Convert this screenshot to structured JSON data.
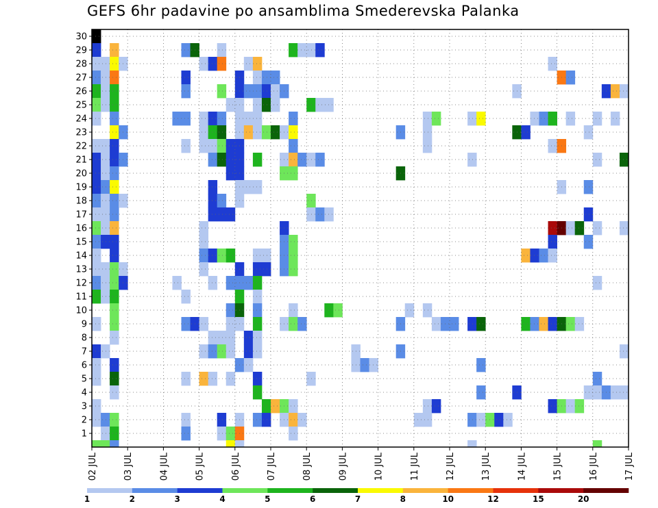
{
  "chart_data": {
    "type": "heatmap",
    "title": "GEFS 6hr padavine po ansamblima Smederevska Palanka",
    "xlabel": "",
    "ylabel": "",
    "x_tick_labels": [
      "02 JUL",
      "03 JUL",
      "04 JUL",
      "05 JUL",
      "06 JUL",
      "07 JUL",
      "08 JUL",
      "09 JUL",
      "10 JUL",
      "11 JUL",
      "12 JUL",
      "13 JUL",
      "14 JUL",
      "15 JUL",
      "16 JUL",
      "17 JUL"
    ],
    "y_tick_labels": [
      "1",
      "2",
      "3",
      "4",
      "5",
      "6",
      "7",
      "8",
      "9",
      "10",
      "11",
      "12",
      "13",
      "14",
      "15",
      "16",
      "17",
      "18",
      "19",
      "20",
      "21",
      "22",
      "23",
      "24",
      "25",
      "26",
      "27",
      "28",
      "29",
      "30"
    ],
    "x_range": [
      0,
      60
    ],
    "y_range": [
      0,
      30
    ],
    "grid": true,
    "colorbar": {
      "labels": [
        "1",
        "2",
        "3",
        "4",
        "5",
        "6",
        "7",
        "8",
        "10",
        "12",
        "15",
        "20"
      ],
      "colors": [
        "#b4c8f0",
        "#5a8ce6",
        "#1e3cd2",
        "#6ee65a",
        "#1eb41e",
        "#0a640a",
        "#fafa00",
        "#fab43c",
        "#fa7814",
        "#e6320a",
        "#aa0a0a",
        "#640000"
      ]
    },
    "units_note": "cells: [step, member, class]; step = 6h forecast step from 02 JUL 00Z, member = ensemble row (0 = bottom row below 1, 30 = top), class = 1..12 precipitation class (1=1-2, 2=2-3, 3=3-4, 4=4-5, 5=5-6, 6=6-7, 7=7-8, 8=8-10, 9=10-12, 10=12-15, 11=15-20, 12=20+)",
    "cells": [
      [
        0,
        30,
        0
      ],
      [
        0,
        29,
        3
      ],
      [
        2,
        29,
        8
      ],
      [
        10,
        29,
        2
      ],
      [
        11,
        29,
        6
      ],
      [
        14,
        29,
        1
      ],
      [
        22,
        29,
        5
      ],
      [
        23,
        29,
        1
      ],
      [
        24,
        29,
        1
      ],
      [
        25,
        29,
        3
      ],
      [
        0,
        28,
        1
      ],
      [
        1,
        28,
        1
      ],
      [
        2,
        28,
        7
      ],
      [
        3,
        28,
        1
      ],
      [
        12,
        28,
        1
      ],
      [
        13,
        28,
        3
      ],
      [
        14,
        28,
        9
      ],
      [
        17,
        28,
        1
      ],
      [
        18,
        28,
        8
      ],
      [
        51,
        28,
        1
      ],
      [
        0,
        27,
        2
      ],
      [
        1,
        27,
        1
      ],
      [
        2,
        27,
        9
      ],
      [
        10,
        27,
        3
      ],
      [
        16,
        27,
        3
      ],
      [
        18,
        27,
        1
      ],
      [
        19,
        27,
        2
      ],
      [
        20,
        27,
        2
      ],
      [
        52,
        27,
        9
      ],
      [
        53,
        27,
        2
      ],
      [
        0,
        26,
        5
      ],
      [
        1,
        26,
        1
      ],
      [
        2,
        26,
        5
      ],
      [
        10,
        26,
        2
      ],
      [
        14,
        26,
        4
      ],
      [
        16,
        26,
        3
      ],
      [
        17,
        26,
        2
      ],
      [
        18,
        26,
        2
      ],
      [
        19,
        26,
        3
      ],
      [
        20,
        26,
        1
      ],
      [
        21,
        26,
        2
      ],
      [
        47,
        26,
        1
      ],
      [
        57,
        26,
        3
      ],
      [
        58,
        26,
        8
      ],
      [
        59,
        26,
        1
      ],
      [
        0,
        25,
        4
      ],
      [
        1,
        25,
        1
      ],
      [
        2,
        25,
        5
      ],
      [
        15,
        25,
        1
      ],
      [
        16,
        25,
        1
      ],
      [
        18,
        25,
        1
      ],
      [
        19,
        25,
        6
      ],
      [
        20,
        25,
        1
      ],
      [
        24,
        25,
        5
      ],
      [
        25,
        25,
        1
      ],
      [
        26,
        25,
        1
      ],
      [
        0,
        24,
        1
      ],
      [
        2,
        24,
        2
      ],
      [
        9,
        24,
        2
      ],
      [
        10,
        24,
        2
      ],
      [
        12,
        24,
        1
      ],
      [
        13,
        24,
        3
      ],
      [
        14,
        24,
        2
      ],
      [
        16,
        24,
        1
      ],
      [
        17,
        24,
        1
      ],
      [
        18,
        24,
        1
      ],
      [
        22,
        24,
        2
      ],
      [
        37,
        24,
        1
      ],
      [
        38,
        24,
        4
      ],
      [
        42,
        24,
        1
      ],
      [
        43,
        24,
        7
      ],
      [
        49,
        24,
        1
      ],
      [
        50,
        24,
        2
      ],
      [
        51,
        24,
        5
      ],
      [
        53,
        24,
        1
      ],
      [
        56,
        24,
        1
      ],
      [
        58,
        24,
        1
      ],
      [
        2,
        23,
        7
      ],
      [
        3,
        23,
        2
      ],
      [
        12,
        23,
        1
      ],
      [
        13,
        23,
        5
      ],
      [
        14,
        23,
        6
      ],
      [
        16,
        23,
        1
      ],
      [
        17,
        23,
        8
      ],
      [
        18,
        23,
        1
      ],
      [
        19,
        23,
        4
      ],
      [
        20,
        23,
        6
      ],
      [
        21,
        23,
        1
      ],
      [
        22,
        23,
        7
      ],
      [
        34,
        23,
        2
      ],
      [
        37,
        23,
        1
      ],
      [
        47,
        23,
        6
      ],
      [
        48,
        23,
        3
      ],
      [
        55,
        23,
        1
      ],
      [
        0,
        22,
        1
      ],
      [
        1,
        22,
        1
      ],
      [
        2,
        22,
        3
      ],
      [
        10,
        22,
        1
      ],
      [
        12,
        22,
        1
      ],
      [
        13,
        22,
        1
      ],
      [
        14,
        22,
        4
      ],
      [
        15,
        22,
        3
      ],
      [
        16,
        22,
        3
      ],
      [
        22,
        22,
        2
      ],
      [
        37,
        22,
        1
      ],
      [
        51,
        22,
        1
      ],
      [
        52,
        22,
        9
      ],
      [
        0,
        21,
        3
      ],
      [
        1,
        21,
        1
      ],
      [
        2,
        21,
        3
      ],
      [
        3,
        21,
        2
      ],
      [
        13,
        21,
        2
      ],
      [
        14,
        21,
        6
      ],
      [
        15,
        21,
        3
      ],
      [
        16,
        21,
        3
      ],
      [
        18,
        21,
        5
      ],
      [
        21,
        21,
        1
      ],
      [
        22,
        21,
        8
      ],
      [
        23,
        21,
        2
      ],
      [
        24,
        21,
        1
      ],
      [
        25,
        21,
        2
      ],
      [
        42,
        21,
        1
      ],
      [
        56,
        21,
        1
      ],
      [
        59,
        21,
        6
      ],
      [
        0,
        20,
        3
      ],
      [
        1,
        20,
        1
      ],
      [
        2,
        20,
        2
      ],
      [
        15,
        20,
        3
      ],
      [
        16,
        20,
        3
      ],
      [
        21,
        20,
        4
      ],
      [
        22,
        20,
        4
      ],
      [
        34,
        20,
        6
      ],
      [
        0,
        19,
        3
      ],
      [
        1,
        19,
        2
      ],
      [
        2,
        19,
        7
      ],
      [
        13,
        19,
        3
      ],
      [
        16,
        19,
        1
      ],
      [
        17,
        19,
        1
      ],
      [
        18,
        19,
        1
      ],
      [
        52,
        19,
        1
      ],
      [
        55,
        19,
        2
      ],
      [
        0,
        18,
        2
      ],
      [
        1,
        18,
        1
      ],
      [
        2,
        18,
        2
      ],
      [
        3,
        18,
        1
      ],
      [
        13,
        18,
        3
      ],
      [
        14,
        18,
        2
      ],
      [
        16,
        18,
        1
      ],
      [
        24,
        18,
        4
      ],
      [
        0,
        17,
        1
      ],
      [
        1,
        17,
        1
      ],
      [
        2,
        17,
        2
      ],
      [
        13,
        17,
        3
      ],
      [
        14,
        17,
        3
      ],
      [
        15,
        17,
        3
      ],
      [
        24,
        17,
        1
      ],
      [
        25,
        17,
        2
      ],
      [
        26,
        17,
        1
      ],
      [
        55,
        17,
        3
      ],
      [
        0,
        16,
        4
      ],
      [
        1,
        16,
        1
      ],
      [
        2,
        16,
        8
      ],
      [
        12,
        16,
        1
      ],
      [
        21,
        16,
        3
      ],
      [
        51,
        16,
        11
      ],
      [
        52,
        16,
        12
      ],
      [
        53,
        16,
        1
      ],
      [
        54,
        16,
        6
      ],
      [
        56,
        16,
        1
      ],
      [
        59,
        16,
        1
      ],
      [
        0,
        15,
        2
      ],
      [
        1,
        15,
        3
      ],
      [
        2,
        15,
        3
      ],
      [
        12,
        15,
        1
      ],
      [
        21,
        15,
        2
      ],
      [
        22,
        15,
        4
      ],
      [
        51,
        15,
        3
      ],
      [
        55,
        15,
        2
      ],
      [
        0,
        14,
        1
      ],
      [
        2,
        14,
        3
      ],
      [
        12,
        14,
        2
      ],
      [
        13,
        14,
        3
      ],
      [
        14,
        14,
        4
      ],
      [
        15,
        14,
        5
      ],
      [
        18,
        14,
        1
      ],
      [
        19,
        14,
        1
      ],
      [
        21,
        14,
        2
      ],
      [
        22,
        14,
        4
      ],
      [
        48,
        14,
        8
      ],
      [
        49,
        14,
        3
      ],
      [
        50,
        14,
        2
      ],
      [
        51,
        14,
        1
      ],
      [
        0,
        13,
        1
      ],
      [
        1,
        13,
        1
      ],
      [
        2,
        13,
        4
      ],
      [
        3,
        13,
        1
      ],
      [
        12,
        13,
        1
      ],
      [
        16,
        13,
        3
      ],
      [
        18,
        13,
        3
      ],
      [
        19,
        13,
        3
      ],
      [
        21,
        13,
        2
      ],
      [
        22,
        13,
        4
      ],
      [
        0,
        12,
        2
      ],
      [
        1,
        12,
        1
      ],
      [
        2,
        12,
        4
      ],
      [
        3,
        12,
        3
      ],
      [
        9,
        12,
        1
      ],
      [
        13,
        12,
        1
      ],
      [
        15,
        12,
        2
      ],
      [
        16,
        12,
        2
      ],
      [
        17,
        12,
        2
      ],
      [
        18,
        12,
        5
      ],
      [
        56,
        12,
        1
      ],
      [
        0,
        11,
        5
      ],
      [
        1,
        11,
        1
      ],
      [
        2,
        11,
        5
      ],
      [
        10,
        11,
        1
      ],
      [
        16,
        11,
        5
      ],
      [
        18,
        11,
        1
      ],
      [
        2,
        10,
        4
      ],
      [
        15,
        10,
        2
      ],
      [
        16,
        10,
        6
      ],
      [
        18,
        10,
        2
      ],
      [
        22,
        10,
        1
      ],
      [
        26,
        10,
        5
      ],
      [
        27,
        10,
        4
      ],
      [
        35,
        10,
        1
      ],
      [
        37,
        10,
        1
      ],
      [
        0,
        9,
        1
      ],
      [
        2,
        9,
        4
      ],
      [
        10,
        9,
        2
      ],
      [
        11,
        9,
        3
      ],
      [
        12,
        9,
        1
      ],
      [
        15,
        9,
        1
      ],
      [
        16,
        9,
        1
      ],
      [
        18,
        9,
        5
      ],
      [
        21,
        9,
        1
      ],
      [
        22,
        9,
        4
      ],
      [
        23,
        9,
        2
      ],
      [
        34,
        9,
        2
      ],
      [
        38,
        9,
        1
      ],
      [
        39,
        9,
        2
      ],
      [
        40,
        9,
        2
      ],
      [
        42,
        9,
        3
      ],
      [
        43,
        9,
        6
      ],
      [
        48,
        9,
        5
      ],
      [
        49,
        9,
        2
      ],
      [
        50,
        9,
        8
      ],
      [
        51,
        9,
        3
      ],
      [
        52,
        9,
        6
      ],
      [
        53,
        9,
        4
      ],
      [
        54,
        9,
        1
      ],
      [
        2,
        8,
        1
      ],
      [
        13,
        8,
        1
      ],
      [
        14,
        8,
        1
      ],
      [
        15,
        8,
        1
      ],
      [
        17,
        8,
        3
      ],
      [
        18,
        8,
        1
      ],
      [
        0,
        7,
        3
      ],
      [
        1,
        7,
        1
      ],
      [
        12,
        7,
        1
      ],
      [
        13,
        7,
        2
      ],
      [
        14,
        7,
        4
      ],
      [
        15,
        7,
        1
      ],
      [
        17,
        7,
        3
      ],
      [
        18,
        7,
        1
      ],
      [
        29,
        7,
        1
      ],
      [
        34,
        7,
        2
      ],
      [
        59,
        7,
        1
      ],
      [
        0,
        6,
        1
      ],
      [
        2,
        6,
        3
      ],
      [
        16,
        6,
        2
      ],
      [
        17,
        6,
        1
      ],
      [
        29,
        6,
        1
      ],
      [
        30,
        6,
        2
      ],
      [
        31,
        6,
        1
      ],
      [
        43,
        6,
        2
      ],
      [
        0,
        5,
        1
      ],
      [
        2,
        5,
        6
      ],
      [
        10,
        5,
        1
      ],
      [
        12,
        5,
        8
      ],
      [
        13,
        5,
        1
      ],
      [
        15,
        5,
        1
      ],
      [
        18,
        5,
        3
      ],
      [
        24,
        5,
        1
      ],
      [
        56,
        5,
        2
      ],
      [
        2,
        4,
        1
      ],
      [
        18,
        4,
        5
      ],
      [
        43,
        4,
        2
      ],
      [
        47,
        4,
        3
      ],
      [
        55,
        4,
        1
      ],
      [
        56,
        4,
        1
      ],
      [
        57,
        4,
        2
      ],
      [
        58,
        4,
        1
      ],
      [
        59,
        4,
        1
      ],
      [
        0,
        3,
        1
      ],
      [
        19,
        3,
        5
      ],
      [
        20,
        3,
        8
      ],
      [
        21,
        3,
        4
      ],
      [
        22,
        3,
        1
      ],
      [
        37,
        3,
        1
      ],
      [
        38,
        3,
        3
      ],
      [
        51,
        3,
        3
      ],
      [
        52,
        3,
        4
      ],
      [
        53,
        3,
        1
      ],
      [
        54,
        3,
        4
      ],
      [
        0,
        2,
        1
      ],
      [
        1,
        2,
        2
      ],
      [
        2,
        2,
        4
      ],
      [
        10,
        2,
        1
      ],
      [
        14,
        2,
        3
      ],
      [
        16,
        2,
        1
      ],
      [
        18,
        2,
        2
      ],
      [
        19,
        2,
        3
      ],
      [
        21,
        2,
        1
      ],
      [
        22,
        2,
        8
      ],
      [
        23,
        2,
        1
      ],
      [
        36,
        2,
        1
      ],
      [
        37,
        2,
        1
      ],
      [
        42,
        2,
        2
      ],
      [
        43,
        2,
        1
      ],
      [
        44,
        2,
        4
      ],
      [
        45,
        2,
        3
      ],
      [
        46,
        2,
        1
      ],
      [
        1,
        1,
        1
      ],
      [
        2,
        1,
        5
      ],
      [
        10,
        1,
        2
      ],
      [
        14,
        1,
        1
      ],
      [
        15,
        1,
        4
      ],
      [
        16,
        1,
        9
      ],
      [
        22,
        1,
        1
      ],
      [
        0,
        0,
        4
      ],
      [
        1,
        0,
        4
      ],
      [
        2,
        0,
        2
      ],
      [
        15,
        0,
        7
      ],
      [
        16,
        0,
        1
      ],
      [
        42,
        0,
        1
      ],
      [
        56,
        0,
        4
      ]
    ]
  }
}
